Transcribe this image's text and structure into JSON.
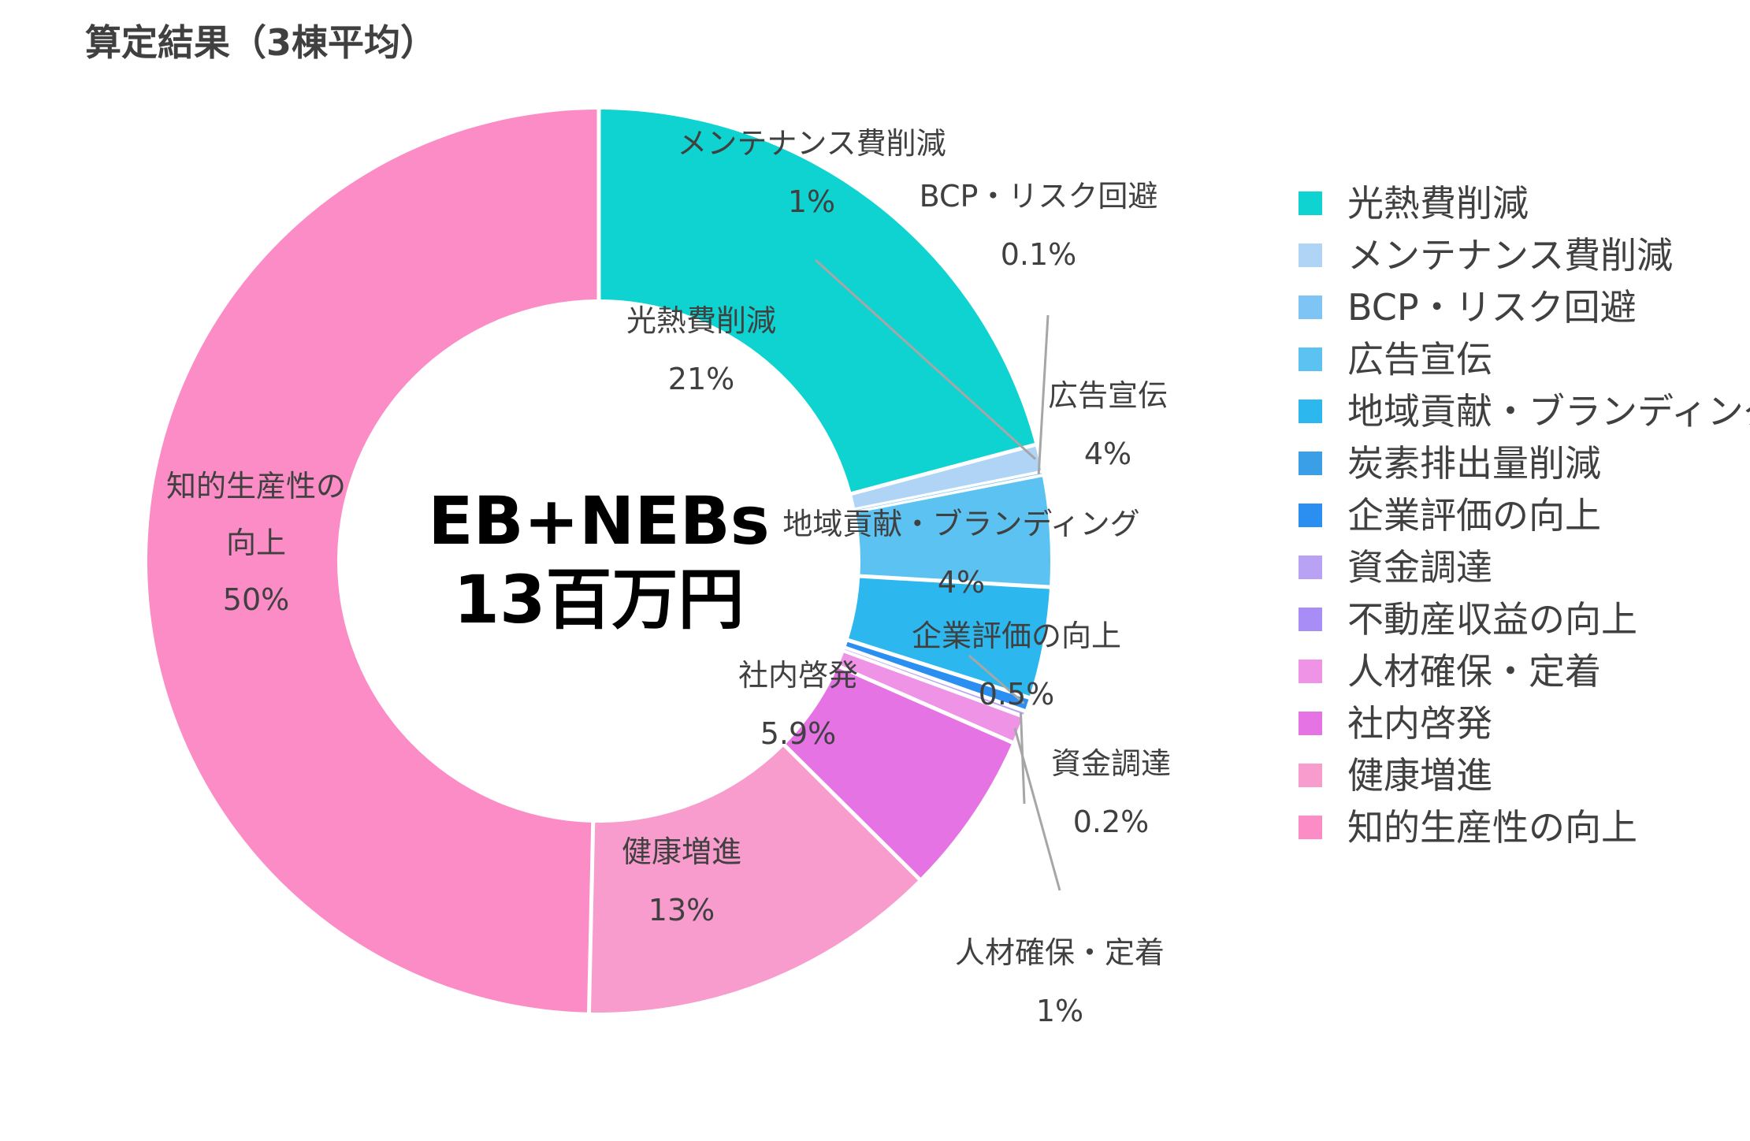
{
  "title": "算定結果（3棟平均）",
  "center": {
    "line1": "EB+NEBs",
    "line2": "13百万円"
  },
  "chart_data": {
    "type": "pie",
    "title": "算定結果（3棟平均）",
    "donut": true,
    "unit": "%",
    "legend_position": "right",
    "slices": [
      {
        "label": "光熱費削減",
        "value": 21,
        "value_label": "21%",
        "color": "#0fd3d1"
      },
      {
        "label": "メンテナンス費削減",
        "value": 1,
        "value_label": "1%",
        "color": "#afd4f6"
      },
      {
        "label": "BCP・リスク回避",
        "value": 0.1,
        "value_label": "0.1%",
        "color": "#7ec5f5"
      },
      {
        "label": "広告宣伝",
        "value": 4,
        "value_label": "4%",
        "color": "#5bc2f1"
      },
      {
        "label": "地域貢献・ブランディング",
        "value": 4,
        "value_label": "4%",
        "color": "#2cb7ee"
      },
      {
        "label": "炭素排出量削減",
        "value": 0,
        "value_label": "",
        "color": "#3a9fe6"
      },
      {
        "label": "企業評価の向上",
        "value": 0.5,
        "value_label": "0.5%",
        "color": "#2a8ff0"
      },
      {
        "label": "資金調達",
        "value": 0.2,
        "value_label": "0.2%",
        "color": "#b9a1f4"
      },
      {
        "label": "不動産収益の向上",
        "value": 0,
        "value_label": "",
        "color": "#a98df6"
      },
      {
        "label": "人材確保・定着",
        "value": 1,
        "value_label": "1%",
        "color": "#ee93e6"
      },
      {
        "label": "社内啓発",
        "value": 5.9,
        "value_label": "5.9%",
        "color": "#e573e4"
      },
      {
        "label": "健康増進",
        "value": 13,
        "value_label": "13%",
        "color": "#f79ccc"
      },
      {
        "label": "知的生産性の向上",
        "value": 50,
        "value_label": "50%",
        "color": "#fb8cc6"
      }
    ]
  }
}
